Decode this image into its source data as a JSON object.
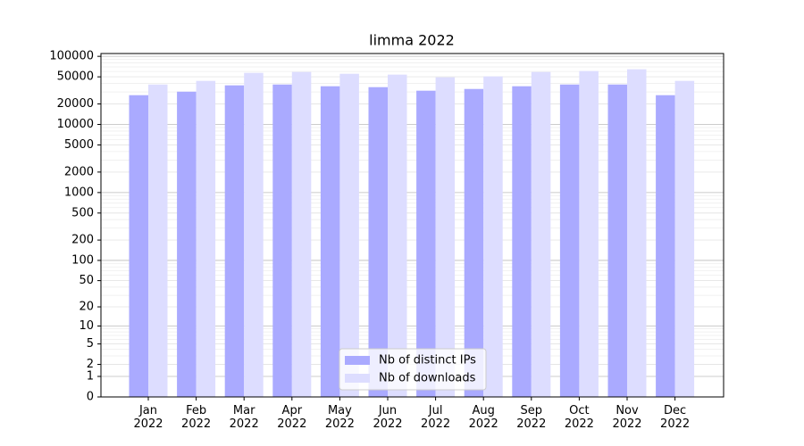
{
  "chart_data": {
    "type": "bar",
    "title": "limma 2022",
    "categories": [
      "Jan\n2022",
      "Feb\n2022",
      "Mar\n2022",
      "Apr\n2022",
      "May\n2022",
      "Jun\n2022",
      "Jul\n2022",
      "Aug\n2022",
      "Sep\n2022",
      "Oct\n2022",
      "Nov\n2022",
      "Dec\n2022"
    ],
    "series": [
      {
        "name": "Nb of distinct IPs",
        "color": "#aaaaff",
        "values": [
          26900,
          30300,
          37500,
          38600,
          36400,
          35300,
          31300,
          33200,
          36400,
          38600,
          38600,
          26900
        ]
      },
      {
        "name": "Nb of downloads",
        "color": "#ddddff",
        "values": [
          38600,
          43600,
          57200,
          59000,
          55500,
          53900,
          49200,
          50700,
          59000,
          60800,
          64600,
          43600
        ]
      }
    ],
    "yscale": "log1p",
    "ylim": [
      0,
      110000
    ],
    "yticks": [
      0,
      1,
      2,
      5,
      10,
      20,
      50,
      100,
      200,
      500,
      1000,
      2000,
      5000,
      10000,
      20000,
      50000,
      100000
    ],
    "grid": true,
    "legend": "lower center"
  }
}
